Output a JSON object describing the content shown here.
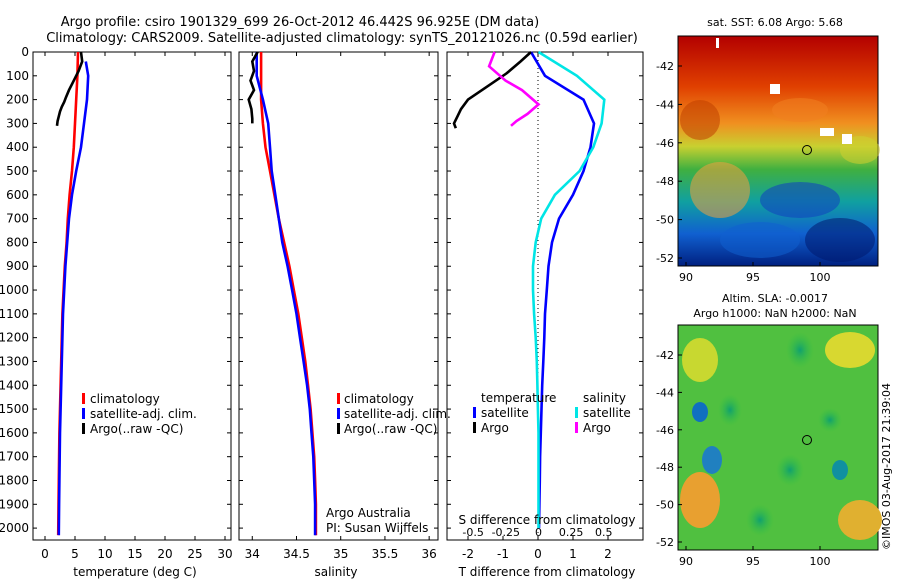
{
  "header": {
    "line1": "Argo profile: csiro 1901329_699 26-Oct-2012 46.442S 96.925E (DM data)",
    "line2": "Climatology: CARS2009. Satellite-adjusted climatology: synTS_20121026.nc (0.59d earlier)"
  },
  "colors": {
    "clim": "#ff0000",
    "sat": "#0000ff",
    "argo": "#000000",
    "sal_sat": "#00e5e5",
    "sal_argo": "#ff00ff"
  },
  "depth_ticks": [
    "0",
    "100",
    "200",
    "300",
    "400",
    "500",
    "600",
    "700",
    "800",
    "900",
    "1000",
    "1100",
    "1200",
    "1300",
    "1400",
    "1500",
    "1600",
    "1700",
    "1800",
    "1900",
    "2000"
  ],
  "chart_data": [
    {
      "type": "line",
      "xlabel": "temperature (deg C)",
      "xlim": [
        -2,
        31
      ],
      "ylim": [
        0,
        2050
      ],
      "xticks": [
        "0",
        "5",
        "10",
        "15",
        "20",
        "25",
        "30"
      ],
      "legend": [
        "climatology",
        "satellite-adj. clim.",
        "Argo(..raw -QC)"
      ],
      "series": [
        {
          "name": "climatology",
          "x": [
            5.5,
            5.4,
            5.2,
            5.0,
            4.8,
            4.5,
            4.1,
            3.8,
            3.6,
            3.3,
            3.1,
            2.9,
            2.8,
            2.7,
            2.6,
            2.5,
            2.4,
            2.35,
            2.3,
            2.25,
            2.2
          ],
          "y": [
            0,
            100,
            200,
            300,
            400,
            500,
            600,
            700,
            800,
            900,
            1000,
            1100,
            1200,
            1300,
            1400,
            1500,
            1600,
            1700,
            1800,
            1900,
            2030
          ]
        },
        {
          "name": "satellite-adj. clim.",
          "x": [
            6.8,
            7.2,
            7.0,
            6.5,
            6.0,
            5.2,
            4.5,
            4.0,
            3.7,
            3.4,
            3.2,
            3.0,
            2.9,
            2.8,
            2.7,
            2.6,
            2.5,
            2.45,
            2.4,
            2.35,
            2.3
          ],
          "y": [
            40,
            100,
            200,
            300,
            400,
            500,
            600,
            700,
            800,
            900,
            1000,
            1100,
            1200,
            1300,
            1400,
            1500,
            1600,
            1700,
            1800,
            1900,
            2030
          ]
        },
        {
          "name": "Argo(..raw -QC)",
          "x": [
            6.0,
            6.2,
            5.6,
            4.8,
            4.0,
            3.5,
            3.2,
            2.8,
            2.5,
            2.3,
            2.1,
            2.0
          ],
          "y": [
            0,
            40,
            80,
            120,
            160,
            190,
            210,
            230,
            250,
            270,
            290,
            310
          ]
        }
      ]
    },
    {
      "type": "line",
      "xlabel": "salinity",
      "xlim": [
        33.85,
        36.1
      ],
      "ylim": [
        0,
        2050
      ],
      "xticks": [
        "34",
        "34.5",
        "35",
        "35.5",
        "36"
      ],
      "legend": [
        "climatology",
        "satellite-adj. clim.",
        "Argo(..raw -QC)"
      ],
      "annotations": [
        "Argo Australia",
        "PI: Susan Wijffels"
      ],
      "series": [
        {
          "name": "climatology",
          "x": [
            34.1,
            34.1,
            34.1,
            34.12,
            34.15,
            34.2,
            34.25,
            34.3,
            34.36,
            34.42,
            34.47,
            34.52,
            34.56,
            34.6,
            34.63,
            34.66,
            34.68,
            34.7,
            34.71,
            34.72,
            34.72
          ],
          "y": [
            0,
            100,
            200,
            300,
            400,
            500,
            600,
            700,
            800,
            900,
            1000,
            1100,
            1200,
            1300,
            1400,
            1500,
            1600,
            1700,
            1800,
            1900,
            2030
          ]
        },
        {
          "name": "satellite-adj. clim.",
          "x": [
            34.05,
            34.05,
            34.12,
            34.18,
            34.2,
            34.22,
            34.26,
            34.3,
            34.34,
            34.4,
            34.45,
            34.5,
            34.54,
            34.58,
            34.62,
            34.65,
            34.67,
            34.69,
            34.7,
            34.71,
            34.71
          ],
          "y": [
            0,
            100,
            200,
            300,
            400,
            500,
            600,
            700,
            800,
            900,
            1000,
            1100,
            1200,
            1300,
            1400,
            1500,
            1600,
            1700,
            1800,
            1900,
            2030
          ]
        },
        {
          "name": "Argo(..raw -QC)",
          "x": [
            34.06,
            34.0,
            34.02,
            33.98,
            34.02,
            33.96,
            33.99,
            34.0,
            34.0
          ],
          "y": [
            0,
            40,
            80,
            120,
            160,
            200,
            240,
            280,
            300
          ]
        }
      ]
    },
    {
      "type": "line",
      "xlabel": "T difference from climatology",
      "xlabel2": "S difference from climatology",
      "xlim": [
        -2.6,
        3.0
      ],
      "ylim": [
        0,
        2050
      ],
      "xticks": [
        "-2",
        "-1",
        "0",
        "1",
        "2"
      ],
      "sticks": [
        "-0.5",
        "-0.25",
        "0",
        "0.25",
        "0.5"
      ],
      "legend_headers": [
        "temperature",
        "salinity"
      ],
      "legend": [
        "satellite",
        "Argo",
        "satellite",
        "Argo"
      ],
      "series": [
        {
          "name": "satellite",
          "x": [
            -0.2,
            0.2,
            1.3,
            1.6,
            1.5,
            1.3,
            1.0,
            0.6,
            0.4,
            0.3,
            0.25,
            0.2,
            0.18,
            0.15,
            0.12,
            0.1,
            0.08,
            0.06,
            0.05,
            0.04,
            0.03
          ],
          "y": [
            0,
            100,
            200,
            300,
            400,
            500,
            600,
            700,
            800,
            900,
            1000,
            1100,
            1200,
            1300,
            1400,
            1500,
            1600,
            1700,
            1800,
            1900,
            2000
          ]
        },
        {
          "name": "Argo",
          "x": [
            -0.2,
            -0.5,
            -0.9,
            -1.5,
            -2.0,
            -2.2,
            -2.3,
            -2.4,
            -2.35
          ],
          "y": [
            0,
            40,
            90,
            150,
            200,
            240,
            270,
            300,
            320
          ]
        },
        {
          "name": "satellite",
          "x": [
            0.0,
            0.7,
            1.2,
            1.15,
            1.0,
            0.75,
            0.3,
            0.05,
            -0.05,
            -0.1,
            -0.1,
            -0.08,
            -0.05,
            -0.03,
            -0.02,
            -0.01,
            0.0,
            0.0,
            0.0,
            0.0,
            0.0
          ],
          "y": [
            0,
            100,
            200,
            300,
            400,
            500,
            600,
            700,
            800,
            900,
            1000,
            1100,
            1200,
            1300,
            1400,
            1500,
            1600,
            1700,
            1800,
            1900,
            2000
          ]
        },
        {
          "name": "Argo",
          "x": [
            -0.8,
            -0.9,
            -0.6,
            -0.3,
            -0.1,
            0.0,
            -0.2,
            -0.4,
            -0.5
          ],
          "y": [
            0,
            60,
            120,
            160,
            200,
            220,
            260,
            290,
            310
          ]
        }
      ]
    }
  ],
  "maps": {
    "sst": {
      "title": "sat. SST: 6.08 Argo: 5.68",
      "yticks": [
        "-42",
        "-44",
        "-46",
        "-48",
        "-50",
        "-52"
      ],
      "xticks": [
        "90",
        "95",
        "100"
      ]
    },
    "sla": {
      "title1": "Altim. SLA: -0.0017",
      "title2": "Argo h1000: NaN h2000: NaN",
      "yticks": [
        "-42",
        "-44",
        "-46",
        "-48",
        "-50",
        "-52"
      ],
      "xticks": [
        "90",
        "95",
        "100"
      ]
    }
  },
  "footer": "©IMOS 03-Aug-2017 21:39:04"
}
